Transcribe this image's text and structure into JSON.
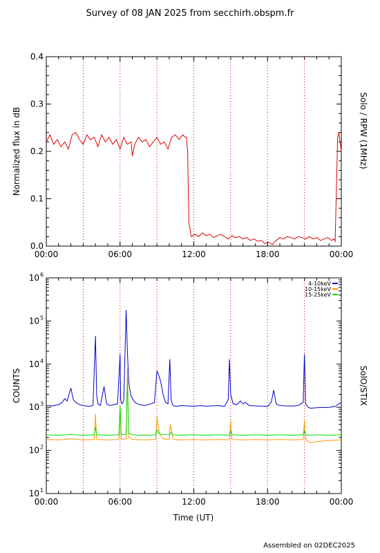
{
  "title": "Survey of 08 JAN 2025 from secchirh.obspm.fr",
  "footer": "Assembled on 02DEC2025",
  "chart_data": [
    {
      "type": "line",
      "ylabel": "Normalized flux in dB",
      "right_label": "Solo / RPW (1MHz)",
      "ylim": [
        0.0,
        0.4
      ],
      "yticks": [
        "0.4",
        "0.3",
        "0.2",
        "0.1",
        "0.0"
      ],
      "xlim": [
        0,
        24
      ],
      "xticks": [
        "00:00",
        "06:00",
        "12:00",
        "18:00",
        "00:00"
      ],
      "vertical_dotted_lines_hours": [
        3,
        6,
        9,
        12,
        15,
        18,
        21
      ],
      "series": [
        {
          "color": "#dd0000",
          "x": [
            0.0,
            0.3,
            0.6,
            0.9,
            1.2,
            1.5,
            1.8,
            2.1,
            2.4,
            2.7,
            3.0,
            3.3,
            3.6,
            3.9,
            4.2,
            4.5,
            4.8,
            5.1,
            5.4,
            5.7,
            6.0,
            6.3,
            6.6,
            6.9,
            7.0,
            7.2,
            7.5,
            7.8,
            8.1,
            8.4,
            8.7,
            9.0,
            9.3,
            9.6,
            9.9,
            10.2,
            10.5,
            10.8,
            11.1,
            11.3,
            11.4,
            11.5,
            11.6,
            11.8,
            12.1,
            12.4,
            12.7,
            13.0,
            13.3,
            13.6,
            13.9,
            14.2,
            14.5,
            14.8,
            15.1,
            15.4,
            15.7,
            16.0,
            16.3,
            16.6,
            16.9,
            17.2,
            17.5,
            17.8,
            18.1,
            18.4,
            18.7,
            19.0,
            19.3,
            19.6,
            19.9,
            20.2,
            20.5,
            20.8,
            21.1,
            21.4,
            21.7,
            22.0,
            22.3,
            22.6,
            22.9,
            23.2,
            23.4,
            23.5,
            23.6,
            23.7,
            23.8,
            23.9,
            24.0
          ],
          "y": [
            0.22,
            0.235,
            0.215,
            0.225,
            0.21,
            0.22,
            0.205,
            0.235,
            0.24,
            0.225,
            0.215,
            0.235,
            0.225,
            0.23,
            0.21,
            0.235,
            0.22,
            0.23,
            0.215,
            0.225,
            0.205,
            0.23,
            0.215,
            0.22,
            0.19,
            0.215,
            0.23,
            0.22,
            0.225,
            0.21,
            0.22,
            0.23,
            0.215,
            0.22,
            0.205,
            0.23,
            0.235,
            0.225,
            0.235,
            0.23,
            0.23,
            0.2,
            0.05,
            0.02,
            0.025,
            0.02,
            0.028,
            0.022,
            0.025,
            0.018,
            0.022,
            0.025,
            0.02,
            0.015,
            0.022,
            0.018,
            0.02,
            0.015,
            0.018,
            0.012,
            0.015,
            0.01,
            0.012,
            0.005,
            0.008,
            0.003,
            0.012,
            0.018,
            0.015,
            0.02,
            0.018,
            0.015,
            0.02,
            0.018,
            0.015,
            0.02,
            0.015,
            0.018,
            0.012,
            0.015,
            0.018,
            0.012,
            0.015,
            0.01,
            0.12,
            0.23,
            0.24,
            0.22,
            0.2
          ]
        }
      ]
    },
    {
      "type": "line",
      "yscale": "log",
      "ylabel": "COUNTS",
      "xlabel": "Time (UT)",
      "right_label": "SolO/STIX",
      "ylim": [
        10,
        1000000
      ],
      "xlim": [
        0,
        24
      ],
      "xticks": [
        "00:00",
        "06:00",
        "12:00",
        "18:00",
        "00:00"
      ],
      "vertical_dotted_lines_hours": [
        3,
        6,
        9,
        12,
        15,
        18,
        21
      ],
      "legend": "top-right",
      "series": [
        {
          "name": "4-10keV",
          "color": "#0000cc",
          "x": [
            0.0,
            0.5,
            1.0,
            1.3,
            1.5,
            1.7,
            2.0,
            2.2,
            2.4,
            2.7,
            3.0,
            3.5,
            3.8,
            4.0,
            4.1,
            4.2,
            4.4,
            4.7,
            4.9,
            5.2,
            5.5,
            5.8,
            6.0,
            6.05,
            6.15,
            6.3,
            6.5,
            6.6,
            6.7,
            6.8,
            6.9,
            7.2,
            7.6,
            8.0,
            8.5,
            8.8,
            9.0,
            9.1,
            9.3,
            9.5,
            9.7,
            9.9,
            10.05,
            10.15,
            10.3,
            10.6,
            11.0,
            11.5,
            12.0,
            12.5,
            13.0,
            13.5,
            14.0,
            14.5,
            14.8,
            14.9,
            15.0,
            15.2,
            15.5,
            15.8,
            16.0,
            16.2,
            16.5,
            17.0,
            17.5,
            18.0,
            18.3,
            18.5,
            18.7,
            19.0,
            19.5,
            20.0,
            20.5,
            20.9,
            21.0,
            21.1,
            21.3,
            21.5,
            22.0,
            22.5,
            23.0,
            23.5,
            24.0
          ],
          "y": [
            1100,
            1080,
            1150,
            1300,
            1600,
            1400,
            2800,
            1500,
            1300,
            1150,
            1100,
            1050,
            1100,
            45000,
            2000,
            1200,
            1100,
            3000,
            1200,
            1100,
            1150,
            1200,
            17000,
            1500,
            1200,
            1400,
            180000,
            20000,
            4000,
            2500,
            1800,
            1300,
            1150,
            1100,
            1200,
            1300,
            7000,
            6000,
            4000,
            2000,
            1300,
            1200,
            13000,
            1500,
            1100,
            1050,
            1100,
            1080,
            1050,
            1100,
            1060,
            1080,
            1100,
            1050,
            1500,
            13000,
            2000,
            1200,
            1150,
            1400,
            1200,
            1300,
            1100,
            1080,
            1060,
            1050,
            1300,
            2500,
            1200,
            1100,
            1080,
            1070,
            1100,
            1300,
            17000,
            1200,
            1000,
            950,
            980,
            990,
            1000,
            1050,
            1300
          ]
        },
        {
          "name": "10-15keV",
          "color": "#ff9900",
          "x": [
            0.0,
            1.0,
            2.0,
            3.0,
            3.9,
            4.0,
            4.1,
            5.0,
            5.9,
            6.0,
            6.1,
            6.5,
            6.6,
            6.7,
            7.0,
            8.0,
            8.9,
            9.0,
            9.2,
            9.5,
            10.0,
            10.1,
            10.3,
            11.0,
            12.0,
            13.0,
            14.0,
            14.9,
            15.0,
            15.1,
            16.0,
            17.0,
            18.0,
            19.0,
            20.0,
            20.9,
            21.0,
            21.1,
            21.5,
            22.0,
            23.0,
            24.0
          ],
          "y": [
            180,
            175,
            185,
            175,
            180,
            700,
            180,
            175,
            180,
            900,
            180,
            185,
            8000,
            200,
            180,
            175,
            180,
            600,
            250,
            185,
            180,
            400,
            180,
            175,
            180,
            175,
            180,
            175,
            500,
            180,
            175,
            180,
            175,
            180,
            175,
            180,
            500,
            180,
            150,
            160,
            170,
            175
          ]
        },
        {
          "name": "15-25keV",
          "color": "#00dd00",
          "x": [
            0.0,
            1.0,
            2.0,
            3.0,
            3.9,
            4.0,
            4.1,
            5.0,
            5.9,
            6.0,
            6.1,
            6.5,
            6.6,
            6.7,
            7.0,
            8.0,
            8.9,
            9.0,
            9.2,
            9.5,
            10.0,
            10.1,
            10.3,
            11.0,
            12.0,
            13.0,
            14.0,
            14.9,
            15.0,
            15.1,
            16.0,
            17.0,
            18.0,
            19.0,
            20.0,
            20.9,
            21.0,
            21.1,
            21.5,
            22.0,
            23.0,
            24.0
          ],
          "y": [
            230,
            225,
            235,
            225,
            230,
            350,
            230,
            225,
            230,
            1100,
            230,
            235,
            4500,
            250,
            230,
            225,
            230,
            300,
            240,
            235,
            230,
            260,
            230,
            225,
            230,
            225,
            230,
            225,
            280,
            230,
            225,
            230,
            225,
            230,
            225,
            230,
            280,
            230,
            225,
            230,
            225,
            230
          ]
        }
      ]
    }
  ]
}
